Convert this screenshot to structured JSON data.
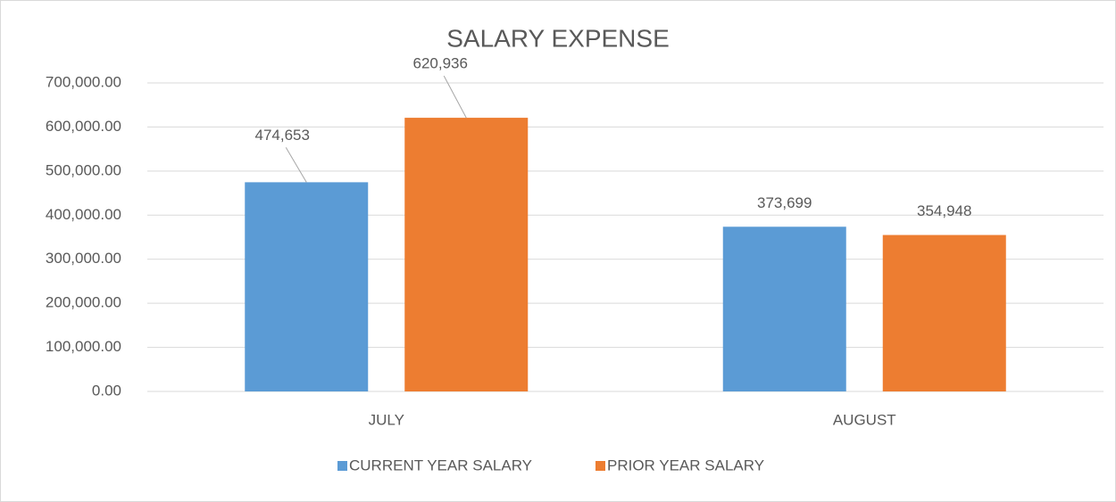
{
  "chart_data": {
    "type": "bar",
    "title": "SALARY EXPENSE",
    "categories": [
      "JULY",
      "AUGUST"
    ],
    "series": [
      {
        "name": "CURRENT YEAR SALARY",
        "color": "#5b9bd5",
        "values": [
          474653,
          373699
        ],
        "value_labels": [
          "474,653",
          "373,699"
        ]
      },
      {
        "name": "PRIOR YEAR SALARY",
        "color": "#ed7d31",
        "values": [
          620936,
          354948
        ],
        "value_labels": [
          "620,936",
          "354,948"
        ]
      }
    ],
    "ylim": [
      0,
      700000
    ],
    "yticks": [
      {
        "value": 0,
        "label": "0.00"
      },
      {
        "value": 100000,
        "label": "100,000.00"
      },
      {
        "value": 200000,
        "label": "200,000.00"
      },
      {
        "value": 300000,
        "label": "300,000.00"
      },
      {
        "value": 400000,
        "label": "400,000.00"
      },
      {
        "value": 500000,
        "label": "500,000.00"
      },
      {
        "value": 600000,
        "label": "600,000.00"
      },
      {
        "value": 700000,
        "label": "700,000.00"
      }
    ],
    "grid": true,
    "legend": "bottom"
  }
}
